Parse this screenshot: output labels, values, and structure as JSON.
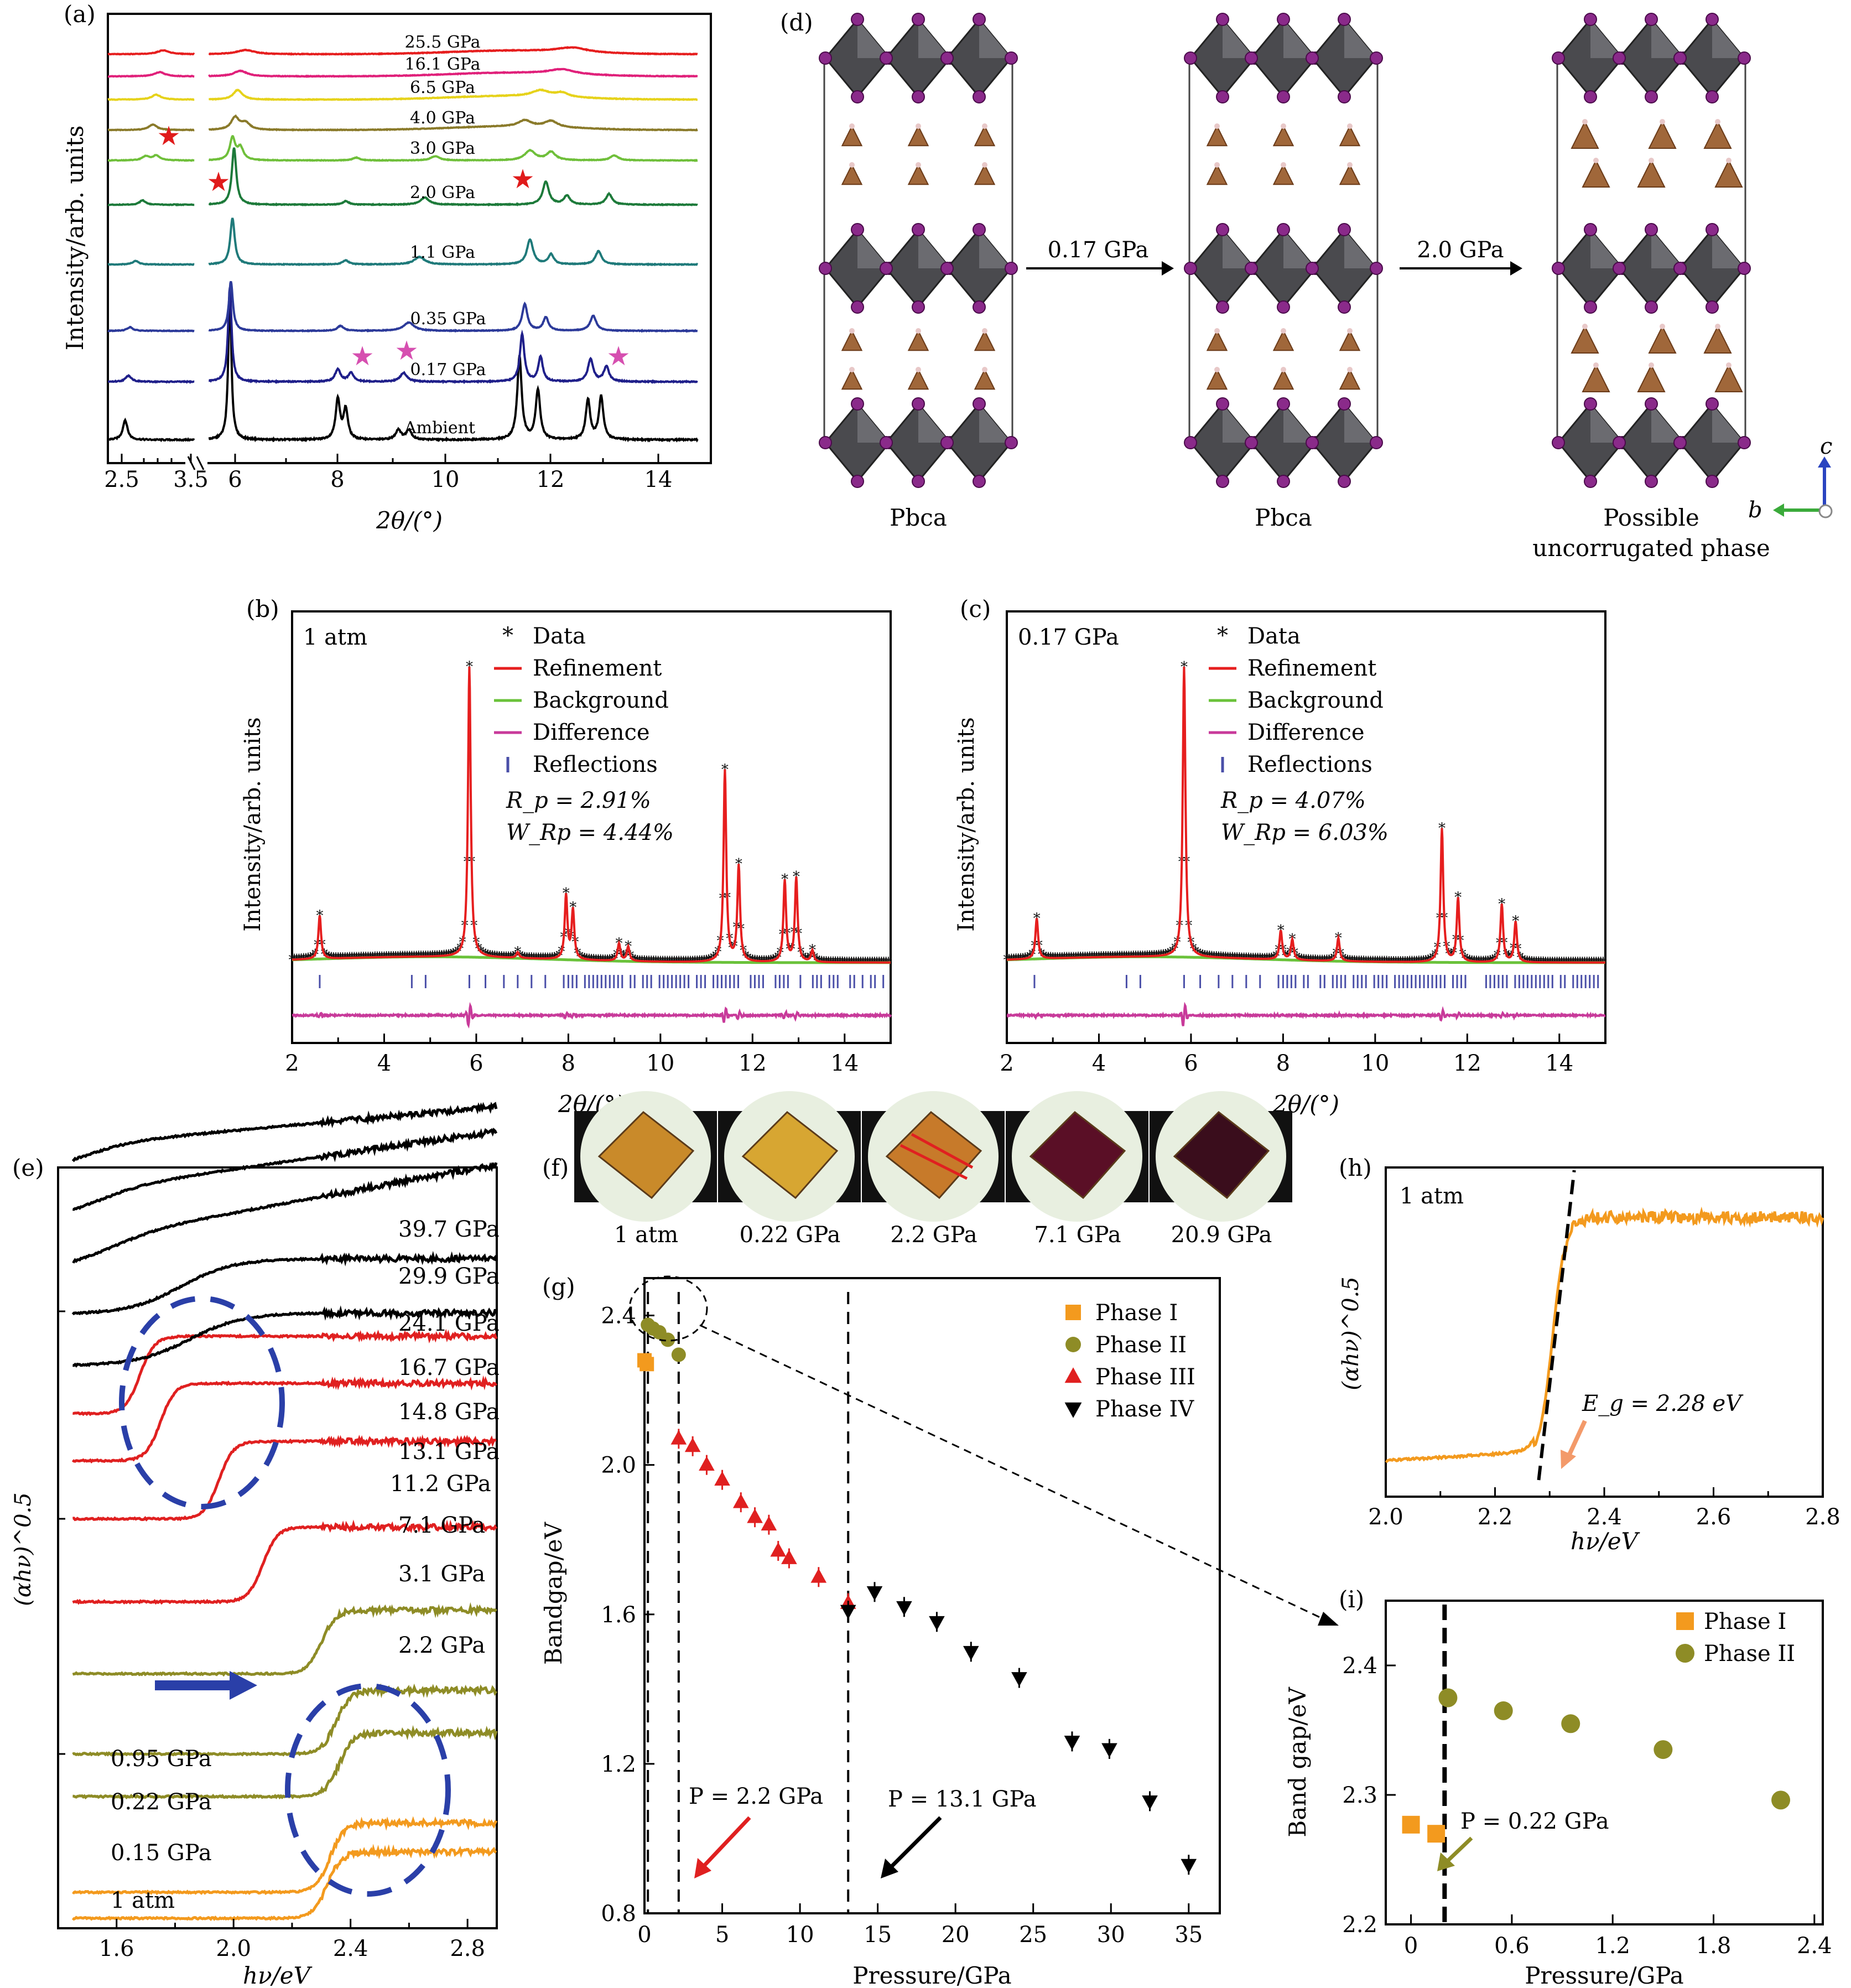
{
  "chart_data": [
    {
      "id": "a",
      "type": "line",
      "panel_label": "(a)",
      "xlabel": "2θ/(°)",
      "ylabel": "Intensity/arb. units",
      "x_ticks_left": [
        "2.5",
        "3.5"
      ],
      "x_ticks_right": [
        "6",
        "8",
        "10",
        "12",
        "14"
      ],
      "xlim_left": [
        2.3,
        3.6
      ],
      "xlim_right": [
        5.5,
        14.8
      ],
      "series": [
        {
          "name": "Ambient",
          "color": "#000000"
        },
        {
          "name": "0.17 GPa",
          "color": "#1f1f8a"
        },
        {
          "name": "0.35 GPa",
          "color": "#2c3a9a"
        },
        {
          "name": "1.1 GPa",
          "color": "#1f7a7a"
        },
        {
          "name": "2.0 GPa",
          "color": "#1d7a3a"
        },
        {
          "name": "3.0 GPa",
          "color": "#6fbf3a"
        },
        {
          "name": "4.0 GPa",
          "color": "#8a7a2a"
        },
        {
          "name": "6.5 GPa",
          "color": "#e6d21a"
        },
        {
          "name": "16.1 GPa",
          "color": "#e0207a"
        },
        {
          "name": "25.5 GPa",
          "color": "#e61e1e"
        }
      ],
      "annotations": [
        {
          "text": "★",
          "color": "#e01b1b",
          "near": "2.0 GPa, 5.9°"
        },
        {
          "text": "★",
          "color": "#e01b1b",
          "near": "2.0 GPa, 11.4°"
        },
        {
          "text": "★",
          "color": "#e01b1b",
          "near": "3.0 GPa, 3.0°"
        },
        {
          "text": "★",
          "color": "#d64fb0",
          "near": "0.17 GPa, 8.4°"
        },
        {
          "text": "★",
          "color": "#d64fb0",
          "near": "0.17 GPa, 9.2°"
        },
        {
          "text": "★",
          "color": "#d64fb0",
          "near": "0.17 GPa, 13.2°"
        }
      ]
    },
    {
      "id": "b",
      "type": "line",
      "panel_label": "(b)",
      "condition": "1 atm",
      "xlabel": "2θ/(°)",
      "ylabel": "Intensity/arb. units",
      "xlim": [
        2,
        15
      ],
      "x_ticks": [
        2,
        4,
        6,
        8,
        10,
        12,
        14
      ],
      "legend": [
        "Data",
        "Refinement",
        "Background",
        "Difference",
        "Reflections"
      ],
      "Rp": "R_p = 2.91%",
      "WRp": "W_Rp = 4.44%",
      "peaks": [
        {
          "x": 2.6,
          "h": 0.15
        },
        {
          "x": 5.85,
          "h": 1.0
        },
        {
          "x": 6.9,
          "h": 0.02
        },
        {
          "x": 7.95,
          "h": 0.22
        },
        {
          "x": 8.1,
          "h": 0.17
        },
        {
          "x": 9.1,
          "h": 0.06
        },
        {
          "x": 9.3,
          "h": 0.05
        },
        {
          "x": 11.4,
          "h": 0.66
        },
        {
          "x": 11.7,
          "h": 0.33
        },
        {
          "x": 12.7,
          "h": 0.28
        },
        {
          "x": 12.95,
          "h": 0.29
        },
        {
          "x": 13.3,
          "h": 0.04
        }
      ]
    },
    {
      "id": "c",
      "type": "line",
      "panel_label": "(c)",
      "condition": "0.17 GPa",
      "xlabel": "2θ/(°)",
      "ylabel": "Intensity/arb. units",
      "xlim": [
        2,
        15
      ],
      "x_ticks": [
        2,
        4,
        6,
        8,
        10,
        12,
        14
      ],
      "legend": [
        "Data",
        "Refinement",
        "Background",
        "Difference",
        "Reflections"
      ],
      "Rp": "R_p = 4.07%",
      "WRp": "W_Rp = 6.03%",
      "peaks": [
        {
          "x": 2.65,
          "h": 0.14
        },
        {
          "x": 5.85,
          "h": 1.0
        },
        {
          "x": 7.95,
          "h": 0.1
        },
        {
          "x": 8.2,
          "h": 0.07
        },
        {
          "x": 9.2,
          "h": 0.08
        },
        {
          "x": 11.45,
          "h": 0.46
        },
        {
          "x": 11.8,
          "h": 0.22
        },
        {
          "x": 12.75,
          "h": 0.2
        },
        {
          "x": 13.05,
          "h": 0.14
        }
      ]
    },
    {
      "id": "e",
      "type": "line",
      "panel_label": "(e)",
      "xlabel": "hν/eV",
      "ylabel": "(αhν)^0.5",
      "xlim": [
        1.4,
        2.9
      ],
      "x_ticks": [
        1.6,
        2.0,
        2.4,
        2.8
      ],
      "series": [
        {
          "name": "1 atm",
          "edge": 2.32,
          "color": "#f39a1e"
        },
        {
          "name": "0.15 GPa",
          "edge": 2.33,
          "color": "#f39a1e"
        },
        {
          "name": "0.22 GPa",
          "edge": 2.36,
          "color": "#8e8c26"
        },
        {
          "name": "0.95 GPa",
          "edge": 2.35,
          "color": "#8e8c26"
        },
        {
          "name": "2.2 GPa",
          "edge": 2.3,
          "color": "#8e8c26"
        },
        {
          "name": "3.1 GPa",
          "edge": 2.1,
          "color": "#e02020"
        },
        {
          "name": "7.1 GPa",
          "edge": 1.95,
          "color": "#e02020"
        },
        {
          "name": "11.2 GPa",
          "edge": 1.75,
          "color": "#e02020"
        },
        {
          "name": "13.1 GPa",
          "edge": 1.68,
          "color": "#e02020"
        },
        {
          "name": "14.8 GPa",
          "edge": 1.85,
          "color": "#000000"
        },
        {
          "name": "16.7 GPa",
          "edge": 1.82,
          "color": "#000000"
        },
        {
          "name": "24.1 GPa",
          "edge": 1.6,
          "color": "#000000"
        },
        {
          "name": "29.9 GPa",
          "edge": 1.55,
          "color": "#000000"
        },
        {
          "name": "39.7 GPa",
          "edge": 1.5,
          "color": "#000000"
        }
      ]
    },
    {
      "id": "g",
      "type": "scatter",
      "panel_label": "(g)",
      "xlabel": "Pressure/GPa",
      "ylabel": "Bandgap/eV",
      "xlim": [
        0,
        37
      ],
      "ylim": [
        0.8,
        2.5
      ],
      "x_ticks": [
        0,
        5,
        10,
        15,
        20,
        25,
        30,
        35
      ],
      "y_ticks": [
        0.8,
        1.2,
        1.6,
        2.0,
        2.4
      ],
      "series": [
        {
          "name": "Phase I",
          "marker": "square",
          "color": "#f39a1e",
          "points": [
            [
              0,
              2.28
            ],
            [
              0.15,
              2.27
            ]
          ]
        },
        {
          "name": "Phase II",
          "marker": "circle",
          "color": "#8e8c26",
          "points": [
            [
              0.22,
              2.375
            ],
            [
              0.55,
              2.365
            ],
            [
              0.95,
              2.355
            ],
            [
              1.5,
              2.335
            ],
            [
              2.2,
              2.295
            ]
          ]
        },
        {
          "name": "Phase III",
          "marker": "triangle-up",
          "color": "#e02020",
          "points": [
            [
              2.2,
              2.07
            ],
            [
              3.1,
              2.05
            ],
            [
              4.0,
              2.0
            ],
            [
              5.0,
              1.96
            ],
            [
              6.2,
              1.9
            ],
            [
              7.1,
              1.86
            ],
            [
              8.0,
              1.84
            ],
            [
              8.6,
              1.77
            ],
            [
              9.3,
              1.75
            ],
            [
              11.2,
              1.7
            ],
            [
              13.1,
              1.63
            ]
          ]
        },
        {
          "name": "Phase IV",
          "marker": "triangle-down",
          "color": "#000000",
          "points": [
            [
              13.1,
              1.61
            ],
            [
              14.8,
              1.66
            ],
            [
              16.7,
              1.62
            ],
            [
              18.8,
              1.58
            ],
            [
              21.0,
              1.5
            ],
            [
              24.1,
              1.43
            ],
            [
              27.5,
              1.26
            ],
            [
              29.9,
              1.24
            ],
            [
              32.5,
              1.1
            ],
            [
              35.0,
              0.93
            ]
          ]
        }
      ],
      "vlines": [
        0.22,
        2.2,
        13.1
      ],
      "annotations": [
        "P = 2.2 GPa",
        "P = 13.1 GPa"
      ]
    },
    {
      "id": "h",
      "type": "line",
      "panel_label": "(h)",
      "condition": "1 atm",
      "xlabel": "hν/eV",
      "ylabel": "(αhν)^0.5",
      "xlim": [
        2.0,
        2.8
      ],
      "x_ticks": [
        2.0,
        2.2,
        2.4,
        2.6,
        2.8
      ],
      "Eg": "E_g = 2.28 eV"
    },
    {
      "id": "i",
      "type": "scatter",
      "panel_label": "(i)",
      "xlabel": "Pressure/GPa",
      "ylabel": "Band gap/eV",
      "xlim": [
        -0.15,
        2.45
      ],
      "ylim": [
        2.2,
        2.45
      ],
      "x_ticks": [
        0,
        0.6,
        1.2,
        1.8,
        2.4
      ],
      "y_ticks": [
        2.2,
        2.3,
        2.4
      ],
      "series": [
        {
          "name": "Phase I",
          "marker": "square",
          "color": "#f39a1e",
          "points": [
            [
              0,
              2.277
            ],
            [
              0.15,
              2.27
            ]
          ]
        },
        {
          "name": "Phase II",
          "marker": "circle",
          "color": "#8e8c26",
          "points": [
            [
              0.22,
              2.375
            ],
            [
              0.55,
              2.365
            ],
            [
              0.95,
              2.355
            ],
            [
              1.5,
              2.335
            ],
            [
              2.2,
              2.296
            ]
          ]
        }
      ],
      "vline": 0.2,
      "annotation": "P = 0.22 GPa"
    }
  ],
  "panel_d": {
    "label": "(d)",
    "arrow1": "0.17 GPa",
    "arrow2": "2.0 GPa",
    "phase1": "Pbca",
    "phase2": "Pbca",
    "phase3_line1": "Possible",
    "phase3_line2": "uncorrugated phase",
    "axis_c": "c",
    "axis_b": "b"
  },
  "panel_f": {
    "label": "(f)",
    "photos": [
      {
        "label": "1 atm",
        "color": "#c98a2a"
      },
      {
        "label": "0.22 GPa",
        "color": "#d7a632"
      },
      {
        "label": "2.2 GPa",
        "color": "#c77a2a"
      },
      {
        "label": "7.1 GPa",
        "color": "#5a0f26"
      },
      {
        "label": "20.9 GPa",
        "color": "#3a0d1c"
      }
    ]
  }
}
